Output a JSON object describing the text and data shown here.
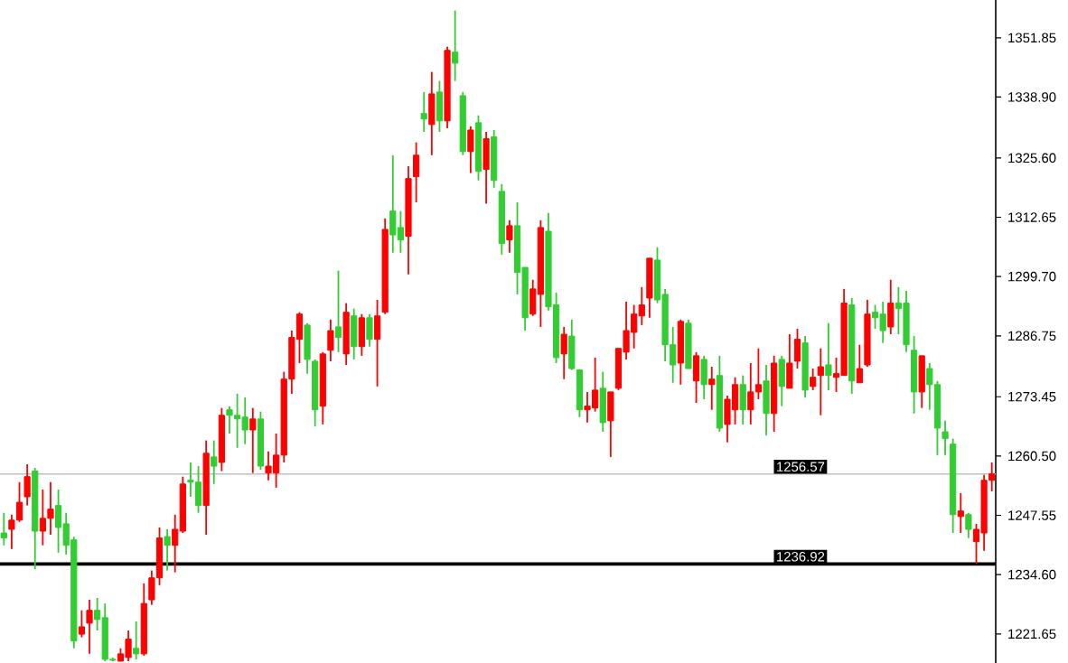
{
  "chart_data": {
    "type": "candlestick",
    "categories": [
      null,
      null,
      null,
      null,
      null,
      null,
      null,
      null,
      null,
      null,
      null,
      null,
      null,
      null,
      null,
      null,
      null,
      null,
      null,
      null,
      null,
      null,
      null,
      null,
      null,
      null,
      null,
      null,
      null,
      null,
      null,
      null,
      null,
      null,
      null,
      null,
      null,
      null,
      null,
      null,
      null,
      null,
      null,
      null,
      null,
      null,
      null,
      null,
      null,
      null,
      null,
      null,
      null,
      null,
      null,
      null,
      null,
      null,
      null,
      null,
      null,
      null,
      null,
      null,
      null,
      null,
      null,
      null,
      null,
      null,
      null,
      null,
      null,
      null,
      null,
      null,
      null,
      null,
      null,
      null,
      null,
      null,
      null,
      null,
      null,
      null,
      null,
      null,
      null,
      null,
      null,
      null,
      null,
      null,
      null,
      null,
      null,
      null,
      null,
      null,
      null,
      null,
      null,
      null,
      null,
      null,
      null,
      null,
      null,
      null,
      null,
      null,
      null,
      null,
      null,
      null,
      null,
      null,
      null,
      null,
      null,
      null,
      null,
      null,
      null,
      null,
      null,
      null
    ],
    "ohlc": [
      [
        1243.7,
        1248.1,
        1241.0,
        1242.6
      ],
      [
        1244.5,
        1247.7,
        1240.2,
        1246.5
      ],
      [
        1246.5,
        1254.8,
        1246.1,
        1250.4
      ],
      [
        1251.6,
        1258.7,
        1249.7,
        1256.0
      ],
      [
        1257.2,
        1257.9,
        1235.8,
        1244.1
      ],
      [
        1244.1,
        1253.2,
        1241.0,
        1246.9
      ],
      [
        1246.9,
        1254.8,
        1243.3,
        1248.9
      ],
      [
        1249.7,
        1253.2,
        1239.4,
        1244.9
      ],
      [
        1245.7,
        1248.1,
        1239.0,
        1241.0
      ],
      [
        1242.2,
        1242.9,
        1218.5,
        1220.1
      ],
      [
        1221.6,
        1226.8,
        1220.9,
        1223.2
      ],
      [
        1224.0,
        1229.1,
        1217.3,
        1226.8
      ],
      [
        1226.8,
        1229.5,
        1222.4,
        1224.8
      ],
      [
        1225.2,
        1228.3,
        1215.7,
        1216.1
      ],
      [
        1216.1,
        1216.5,
        1215.7,
        1215.9
      ],
      [
        1215.7,
        1218.5,
        1215.7,
        1217.3
      ],
      [
        1216.5,
        1222.4,
        1215.7,
        1220.5
      ],
      [
        1218.5,
        1224.4,
        1216.1,
        1217.3
      ],
      [
        1217.3,
        1232.7,
        1216.9,
        1228.3
      ],
      [
        1229.1,
        1235.5,
        1228.0,
        1233.9
      ],
      [
        1233.9,
        1244.9,
        1232.3,
        1242.6
      ],
      [
        1242.9,
        1244.5,
        1235.5,
        1241.0
      ],
      [
        1241.0,
        1247.7,
        1235.1,
        1244.5
      ],
      [
        1244.1,
        1256.0,
        1243.7,
        1254.4
      ],
      [
        1255.2,
        1259.1,
        1251.6,
        1254.8
      ],
      [
        1254.8,
        1258.3,
        1248.1,
        1249.7
      ],
      [
        1249.7,
        1263.9,
        1243.3,
        1261.1
      ],
      [
        1260.3,
        1263.9,
        1254.4,
        1258.3
      ],
      [
        1259.1,
        1271.0,
        1257.2,
        1269.4
      ],
      [
        1270.6,
        1271.4,
        1265.4,
        1269.4
      ],
      [
        1269.4,
        1274.1,
        1262.3,
        1268.6
      ],
      [
        1269.0,
        1273.3,
        1263.1,
        1266.2
      ],
      [
        1266.2,
        1271.0,
        1256.8,
        1268.6
      ],
      [
        1268.6,
        1270.2,
        1257.5,
        1258.3
      ],
      [
        1256.8,
        1261.5,
        1255.2,
        1258.3
      ],
      [
        1256.8,
        1265.4,
        1253.6,
        1260.7
      ],
      [
        1260.7,
        1278.9,
        1259.1,
        1277.3
      ],
      [
        1277.3,
        1287.9,
        1274.1,
        1286.4
      ],
      [
        1286.0,
        1291.9,
        1280.8,
        1291.5
      ],
      [
        1289.1,
        1289.5,
        1278.5,
        1281.6
      ],
      [
        1281.2,
        1281.6,
        1267.0,
        1270.6
      ],
      [
        1271.4,
        1283.2,
        1267.4,
        1282.8
      ],
      [
        1283.6,
        1290.3,
        1281.2,
        1287.9
      ],
      [
        1288.7,
        1301.0,
        1283.2,
        1286.4
      ],
      [
        1282.8,
        1293.9,
        1280.4,
        1291.9
      ],
      [
        1291.1,
        1292.7,
        1281.6,
        1284.4
      ],
      [
        1284.4,
        1291.5,
        1282.4,
        1290.7
      ],
      [
        1290.7,
        1291.5,
        1284.4,
        1286.0
      ],
      [
        1286.0,
        1294.6,
        1275.7,
        1291.1
      ],
      [
        1291.9,
        1312.4,
        1291.5,
        1310.0
      ],
      [
        1314.0,
        1326.2,
        1304.9,
        1308.8
      ],
      [
        1310.4,
        1314.0,
        1304.9,
        1307.7
      ],
      [
        1308.5,
        1323.8,
        1300.2,
        1321.1
      ],
      [
        1321.5,
        1329.0,
        1315.9,
        1326.2
      ],
      [
        1335.3,
        1340.0,
        1331.3,
        1334.1
      ],
      [
        1332.9,
        1344.4,
        1326.2,
        1339.6
      ],
      [
        1340.0,
        1342.4,
        1331.3,
        1333.7
      ],
      [
        1333.7,
        1349.9,
        1332.1,
        1349.1
      ],
      [
        1348.7,
        1357.8,
        1342.4,
        1346.3
      ],
      [
        1339.2,
        1340.0,
        1326.2,
        1327.0
      ],
      [
        1327.0,
        1332.5,
        1322.3,
        1331.7
      ],
      [
        1333.3,
        1334.9,
        1320.7,
        1322.7
      ],
      [
        1323.1,
        1331.3,
        1315.6,
        1329.8
      ],
      [
        1330.2,
        1331.7,
        1319.1,
        1320.7
      ],
      [
        1318.3,
        1319.9,
        1304.5,
        1306.9
      ],
      [
        1307.7,
        1312.0,
        1304.9,
        1310.8
      ],
      [
        1310.8,
        1315.9,
        1295.8,
        1300.6
      ],
      [
        1301.7,
        1301.7,
        1287.9,
        1290.7
      ],
      [
        1291.5,
        1299.0,
        1291.1,
        1297.0
      ],
      [
        1295.8,
        1312.0,
        1288.7,
        1310.4
      ],
      [
        1309.6,
        1313.6,
        1292.3,
        1293.1
      ],
      [
        1293.5,
        1296.2,
        1280.8,
        1282.0
      ],
      [
        1282.8,
        1288.7,
        1277.3,
        1287.1
      ],
      [
        1286.7,
        1290.3,
        1279.3,
        1279.6
      ],
      [
        1279.3,
        1279.3,
        1269.0,
        1270.6
      ],
      [
        1270.6,
        1274.5,
        1267.8,
        1271.4
      ],
      [
        1271.0,
        1282.0,
        1270.2,
        1274.9
      ],
      [
        1275.3,
        1278.9,
        1265.8,
        1267.8
      ],
      [
        1268.2,
        1274.5,
        1260.3,
        1274.5
      ],
      [
        1275.3,
        1284.0,
        1274.9,
        1284.0
      ],
      [
        1283.2,
        1294.2,
        1281.6,
        1287.9
      ],
      [
        1287.5,
        1293.5,
        1284.0,
        1291.5
      ],
      [
        1291.1,
        1297.4,
        1289.1,
        1293.5
      ],
      [
        1295.0,
        1303.7,
        1290.7,
        1303.7
      ],
      [
        1303.3,
        1306.1,
        1293.9,
        1294.6
      ],
      [
        1295.8,
        1297.0,
        1281.2,
        1284.8
      ],
      [
        1284.8,
        1288.7,
        1276.5,
        1280.4
      ],
      [
        1280.8,
        1290.3,
        1276.1,
        1289.9
      ],
      [
        1289.5,
        1290.3,
        1279.6,
        1279.6
      ],
      [
        1276.9,
        1283.2,
        1272.1,
        1282.4
      ],
      [
        1281.6,
        1282.4,
        1272.9,
        1276.1
      ],
      [
        1276.1,
        1280.0,
        1270.6,
        1277.3
      ],
      [
        1278.1,
        1282.4,
        1265.8,
        1266.6
      ],
      [
        1267.4,
        1273.7,
        1263.5,
        1272.9
      ],
      [
        1270.6,
        1277.7,
        1267.4,
        1276.1
      ],
      [
        1276.1,
        1278.1,
        1267.4,
        1270.6
      ],
      [
        1270.6,
        1280.8,
        1267.4,
        1274.5
      ],
      [
        1274.5,
        1284.0,
        1272.9,
        1276.1
      ],
      [
        1276.9,
        1280.4,
        1265.0,
        1269.8
      ],
      [
        1269.8,
        1282.4,
        1265.8,
        1280.8
      ],
      [
        1281.6,
        1282.4,
        1271.4,
        1275.7
      ],
      [
        1275.3,
        1287.1,
        1275.3,
        1280.8
      ],
      [
        1281.2,
        1288.3,
        1279.6,
        1286.0
      ],
      [
        1285.2,
        1286.7,
        1273.3,
        1274.9
      ],
      [
        1275.7,
        1279.6,
        1274.9,
        1277.7
      ],
      [
        1278.1,
        1284.0,
        1269.4,
        1280.0
      ],
      [
        1280.4,
        1289.5,
        1274.9,
        1278.1
      ],
      [
        1277.7,
        1282.0,
        1274.5,
        1278.5
      ],
      [
        1278.1,
        1297.0,
        1278.1,
        1293.9
      ],
      [
        1293.5,
        1295.0,
        1274.1,
        1276.9
      ],
      [
        1276.5,
        1284.8,
        1276.5,
        1279.6
      ],
      [
        1280.4,
        1294.6,
        1280.0,
        1291.5
      ],
      [
        1291.9,
        1293.5,
        1288.3,
        1290.7
      ],
      [
        1291.5,
        1294.2,
        1285.2,
        1287.9
      ],
      [
        1288.7,
        1299.0,
        1287.1,
        1293.9
      ],
      [
        1293.9,
        1297.4,
        1287.1,
        1292.7
      ],
      [
        1293.9,
        1296.6,
        1283.2,
        1284.8
      ],
      [
        1283.6,
        1286.7,
        1269.8,
        1274.5
      ],
      [
        1274.5,
        1282.4,
        1271.0,
        1282.4
      ],
      [
        1279.6,
        1280.8,
        1270.6,
        1276.1
      ],
      [
        1276.1,
        1276.9,
        1260.7,
        1266.6
      ],
      [
        1265.8,
        1268.2,
        1260.7,
        1264.3
      ],
      [
        1263.1,
        1264.3,
        1243.7,
        1247.7
      ],
      [
        1247.3,
        1252.4,
        1243.7,
        1248.5
      ],
      [
        1247.7,
        1248.1,
        1242.6,
        1244.5
      ],
      [
        1241.8,
        1245.7,
        1236.9,
        1244.5
      ],
      [
        1243.7,
        1256.4,
        1239.8,
        1255.2
      ],
      [
        1255.2,
        1259.1,
        1252.8,
        1256.6
      ]
    ],
    "colors": [
      "#32cd32",
      "#ff0000",
      "#ff0000",
      "#ff0000",
      "#32cd32",
      "#ff0000",
      "#ff0000",
      "#32cd32",
      "#32cd32",
      "#32cd32",
      "#ff0000",
      "#ff0000",
      "#32cd32",
      "#32cd32",
      "#32cd32",
      "#ff0000",
      "#ff0000",
      "#32cd32",
      "#ff0000",
      "#ff0000",
      "#ff0000",
      "#32cd32",
      "#ff0000",
      "#ff0000",
      "#32cd32",
      "#32cd32",
      "#ff0000",
      "#32cd32",
      "#ff0000",
      "#32cd32",
      "#32cd32",
      "#32cd32",
      "#ff0000",
      "#32cd32",
      "#ff0000",
      "#ff0000",
      "#ff0000",
      "#ff0000",
      "#ff0000",
      "#32cd32",
      "#32cd32",
      "#ff0000",
      "#ff0000",
      "#32cd32",
      "#ff0000",
      "#32cd32",
      "#ff0000",
      "#32cd32",
      "#ff0000",
      "#ff0000",
      "#32cd32",
      "#32cd32",
      "#ff0000",
      "#ff0000",
      "#32cd32",
      "#ff0000",
      "#32cd32",
      "#ff0000",
      "#32cd32",
      "#32cd32",
      "#ff0000",
      "#32cd32",
      "#ff0000",
      "#32cd32",
      "#32cd32",
      "#ff0000",
      "#32cd32",
      "#32cd32",
      "#ff0000",
      "#ff0000",
      "#32cd32",
      "#32cd32",
      "#ff0000",
      "#32cd32",
      "#32cd32",
      "#ff0000",
      "#ff0000",
      "#32cd32",
      "#ff0000",
      "#ff0000",
      "#ff0000",
      "#ff0000",
      "#ff0000",
      "#ff0000",
      "#32cd32",
      "#32cd32",
      "#32cd32",
      "#ff0000",
      "#32cd32",
      "#ff0000",
      "#32cd32",
      "#ff0000",
      "#32cd32",
      "#ff0000",
      "#ff0000",
      "#32cd32",
      "#ff0000",
      "#ff0000",
      "#32cd32",
      "#ff0000",
      "#32cd32",
      "#ff0000",
      "#ff0000",
      "#32cd32",
      "#ff0000",
      "#ff0000",
      "#32cd32",
      "#ff0000",
      "#ff0000",
      "#32cd32",
      "#ff0000",
      "#ff0000",
      "#32cd32",
      "#32cd32",
      "#ff0000",
      "#32cd32",
      "#32cd32",
      "#32cd32",
      "#ff0000",
      "#32cd32",
      "#32cd32",
      "#32cd32",
      "#32cd32",
      "#ff0000",
      "#32cd32",
      "#ff0000",
      "#ff0000",
      "#ff0000"
    ],
    "ylim": [
      1215.3,
      1360.1
    ],
    "yticks": [
      1351.85,
      {
        "value": 1338.9,
        "label": "1338.90"
      },
      {
        "value": 1325.6,
        "label": "1325.60"
      },
      1312.65,
      {
        "value": 1299.7,
        "label": "1299.70"
      },
      1286.75,
      1273.45,
      {
        "value": 1260.5,
        "label": "1260.50"
      },
      1247.55,
      {
        "value": 1234.6,
        "label": "1234.60"
      },
      1221.65
    ],
    "tick_labels": "y",
    "ref_lines": [
      {
        "axis": "y",
        "value": 1256.57,
        "label": "1256.57",
        "color": "#c0c0c0"
      },
      {
        "axis": "y",
        "value": 1236.92,
        "label": "1236.92",
        "color": "#000000"
      }
    ]
  }
}
